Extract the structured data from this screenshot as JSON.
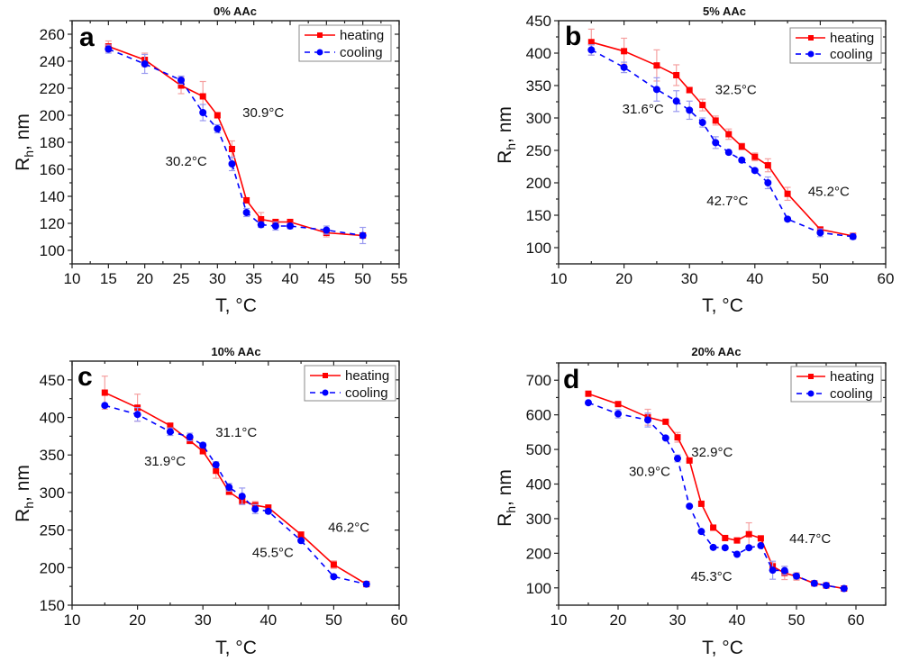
{
  "chart_data": [
    {
      "type": "line",
      "panel_letter": "a",
      "title": "0% AAc",
      "xlabel": "T, °C",
      "ylabel_main": "R",
      "ylabel_sub": "h",
      "ylabel_rest": ", nm",
      "xlim": [
        10,
        55
      ],
      "ylim": [
        90,
        270
      ],
      "xticks": [
        10,
        15,
        20,
        25,
        30,
        35,
        40,
        45,
        50,
        55
      ],
      "yticks": [
        100,
        120,
        140,
        160,
        180,
        200,
        220,
        240,
        260
      ],
      "legend": {
        "placement": "top-right",
        "entries": [
          "heating",
          "cooling"
        ]
      },
      "series": [
        {
          "name": "heating",
          "color": "#ff0000",
          "marker": "square",
          "linestyle": "solid",
          "x": [
            15,
            20,
            25,
            28,
            30,
            32,
            34,
            36,
            38,
            40,
            45,
            50
          ],
          "y": [
            251,
            241,
            222,
            214,
            200,
            175,
            137,
            123,
            121,
            121,
            113,
            111
          ],
          "err": [
            4,
            5,
            6,
            11,
            2,
            6,
            2,
            5,
            2,
            2,
            3,
            2
          ]
        },
        {
          "name": "cooling",
          "color": "#0000ff",
          "marker": "circle",
          "linestyle": "dashed",
          "x": [
            15,
            20,
            25,
            28,
            30,
            32,
            34,
            36,
            38,
            40,
            45,
            50
          ],
          "y": [
            249,
            238,
            226,
            202,
            190,
            164,
            128,
            119,
            118,
            118,
            115,
            111
          ],
          "err": [
            3,
            7,
            3,
            6,
            3,
            5,
            3,
            2,
            3,
            2,
            3,
            6
          ]
        }
      ],
      "annotations": [
        {
          "text": "30.9°C",
          "x": 36.3,
          "y": 202
        },
        {
          "text": "30.2°C",
          "x": 25.7,
          "y": 166
        }
      ]
    },
    {
      "type": "line",
      "panel_letter": "b",
      "title": "5% AAc",
      "xlabel": "T, °C",
      "ylabel_main": "R",
      "ylabel_sub": "h",
      "ylabel_rest": ", nm",
      "xlim": [
        10,
        60
      ],
      "ylim": [
        75,
        450
      ],
      "xticks": [
        10,
        20,
        30,
        40,
        50,
        60
      ],
      "yticks": [
        100,
        150,
        200,
        250,
        300,
        350,
        400,
        450
      ],
      "legend": {
        "placement": "top-right",
        "entries": [
          "heating",
          "cooling"
        ]
      },
      "series": [
        {
          "name": "heating",
          "color": "#ff0000",
          "marker": "square",
          "linestyle": "solid",
          "x": [
            15,
            20,
            25,
            28,
            30,
            32,
            34,
            36,
            38,
            40,
            42,
            45,
            50,
            55
          ],
          "y": [
            417,
            403,
            381,
            366,
            343,
            320,
            296,
            275,
            256,
            240,
            227,
            183,
            128,
            118
          ],
          "err": [
            20,
            20,
            24,
            16,
            4,
            9,
            7,
            8,
            5,
            6,
            10,
            10,
            3,
            3
          ]
        },
        {
          "name": "cooling",
          "color": "#0000ff",
          "marker": "circle",
          "linestyle": "dashed",
          "x": [
            15,
            20,
            25,
            28,
            30,
            32,
            34,
            36,
            38,
            40,
            42,
            45,
            50,
            55
          ],
          "y": [
            405,
            378,
            344,
            326,
            312,
            293,
            262,
            247,
            235,
            219,
            200,
            144,
            123,
            117
          ],
          "err": [
            8,
            8,
            18,
            16,
            14,
            7,
            9,
            3,
            3,
            3,
            9,
            3,
            6,
            4
          ]
        }
      ],
      "annotations": [
        {
          "text": "32.5°C",
          "x": 37.1,
          "y": 344
        },
        {
          "text": "31.6°C",
          "x": 22.9,
          "y": 314
        },
        {
          "text": "42.7°C",
          "x": 35.8,
          "y": 172
        },
        {
          "text": "45.2°C",
          "x": 51.3,
          "y": 187
        }
      ]
    },
    {
      "type": "line",
      "panel_letter": "c",
      "title": "10% AAc",
      "xlabel": "T, °C",
      "ylabel_main": "R",
      "ylabel_sub": "h",
      "ylabel_rest": ", nm",
      "xlim": [
        10,
        60
      ],
      "ylim": [
        150,
        475
      ],
      "xticks": [
        10,
        20,
        30,
        40,
        50,
        60
      ],
      "yticks": [
        150,
        200,
        250,
        300,
        350,
        400,
        450
      ],
      "legend": {
        "placement": "top-right",
        "entries": [
          "heating",
          "cooling"
        ]
      },
      "series": [
        {
          "name": "heating",
          "color": "#ff0000",
          "marker": "square",
          "linestyle": "solid",
          "x": [
            15,
            20,
            25,
            28,
            30,
            32,
            34,
            36,
            38,
            40,
            45,
            50,
            55
          ],
          "y": [
            433,
            413,
            389,
            369,
            355,
            329,
            301,
            289,
            283,
            280,
            244,
            204,
            178
          ],
          "err": [
            22,
            18,
            3,
            4,
            3,
            10,
            3,
            4,
            5,
            3,
            3,
            5,
            2
          ]
        },
        {
          "name": "cooling",
          "color": "#0000ff",
          "marker": "circle",
          "linestyle": "dashed",
          "x": [
            15,
            20,
            25,
            28,
            30,
            32,
            34,
            36,
            38,
            40,
            45,
            50,
            55
          ],
          "y": [
            416,
            404,
            381,
            374,
            363,
            337,
            307,
            295,
            278,
            275,
            236,
            188,
            178
          ],
          "err": [
            2,
            9,
            5,
            5,
            3,
            4,
            5,
            11,
            6,
            3,
            2,
            2,
            2
          ]
        }
      ],
      "annotations": [
        {
          "text": "31.1°C",
          "x": 35.1,
          "y": 380
        },
        {
          "text": "31.9°C",
          "x": 24.2,
          "y": 342
        },
        {
          "text": "46.2°C",
          "x": 52.3,
          "y": 254
        },
        {
          "text": "45.5°C",
          "x": 40.7,
          "y": 220
        }
      ]
    },
    {
      "type": "line",
      "panel_letter": "d",
      "title": "20% AAc",
      "xlabel": "T, °C",
      "ylabel_main": "R",
      "ylabel_sub": "h",
      "ylabel_rest": ", nm",
      "xlim": [
        10,
        65
      ],
      "ylim": [
        50,
        750
      ],
      "xticks": [
        10,
        20,
        30,
        40,
        50,
        60
      ],
      "yticks": [
        100,
        200,
        300,
        400,
        500,
        600,
        700
      ],
      "legend": {
        "placement": "top-right",
        "entries": [
          "heating",
          "cooling"
        ]
      },
      "series": [
        {
          "name": "heating",
          "color": "#ff0000",
          "marker": "square",
          "linestyle": "solid",
          "x": [
            15,
            20,
            25,
            28,
            30,
            32,
            34,
            36,
            38,
            40,
            42,
            44,
            46,
            48,
            50,
            53,
            55,
            58
          ],
          "y": [
            661,
            631,
            593,
            580,
            535,
            468,
            343,
            274,
            244,
            237,
            255,
            243,
            162,
            143,
            133,
            113,
            107,
            98
          ],
          "err": [
            3,
            3,
            23,
            3,
            14,
            3,
            3,
            3,
            3,
            3,
            33,
            3,
            10,
            19,
            11,
            3,
            3,
            3
          ]
        },
        {
          "name": "cooling",
          "color": "#0000ff",
          "marker": "circle",
          "linestyle": "dashed",
          "x": [
            15,
            20,
            25,
            28,
            30,
            32,
            34,
            36,
            38,
            40,
            42,
            44,
            46,
            48,
            50,
            53,
            55,
            58
          ],
          "y": [
            635,
            603,
            585,
            533,
            474,
            336,
            263,
            217,
            216,
            197,
            216,
            222,
            151,
            150,
            134,
            113,
            107,
            98
          ],
          "err": [
            3,
            12,
            20,
            3,
            10,
            3,
            3,
            3,
            3,
            3,
            3,
            3,
            26,
            12,
            8,
            3,
            3,
            3
          ]
        }
      ],
      "annotations": [
        {
          "text": "32.9°C",
          "x": 35.8,
          "y": 492
        },
        {
          "text": "30.9°C",
          "x": 25.3,
          "y": 437
        },
        {
          "text": "44.7°C",
          "x": 52.3,
          "y": 242
        },
        {
          "text": "45.3°C",
          "x": 35.7,
          "y": 133
        }
      ]
    }
  ]
}
